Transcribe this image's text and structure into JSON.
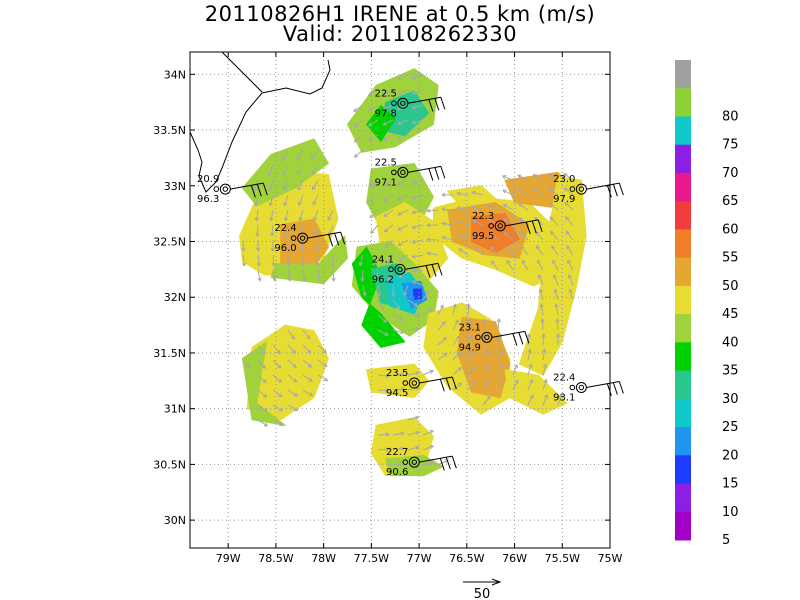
{
  "title_line1": "20110826H1 IRENE at 0.5 km (m/s)",
  "title_line2": "Valid: 201108262330",
  "map": {
    "lon_range": [
      -79.4,
      -75.0
    ],
    "lat_range": [
      29.75,
      34.2
    ],
    "lat_ticks": [
      {
        "value": 34.0,
        "label": "34N"
      },
      {
        "value": 33.5,
        "label": "33.5N"
      },
      {
        "value": 33.0,
        "label": "33N"
      },
      {
        "value": 32.5,
        "label": "32.5N"
      },
      {
        "value": 32.0,
        "label": "32N"
      },
      {
        "value": 31.5,
        "label": "31.5N"
      },
      {
        "value": 31.0,
        "label": "31N"
      },
      {
        "value": 30.5,
        "label": "30.5N"
      },
      {
        "value": 30.0,
        "label": "30N"
      }
    ],
    "lon_ticks": [
      {
        "value": -79.0,
        "label": "79W"
      },
      {
        "value": -78.5,
        "label": "78.5W"
      },
      {
        "value": -78.0,
        "label": "78W"
      },
      {
        "value": -77.5,
        "label": "77.5W"
      },
      {
        "value": -77.0,
        "label": "77W"
      },
      {
        "value": -76.5,
        "label": "76.5W"
      },
      {
        "value": -76.0,
        "label": "76W"
      },
      {
        "value": -75.5,
        "label": "75.5W"
      },
      {
        "value": -75.0,
        "label": "75W"
      }
    ],
    "grid": true,
    "storm_center": {
      "lon": -77.02,
      "lat": 32.04
    }
  },
  "colorbar": {
    "levels": [
      {
        "label": "",
        "color": "#a0a0a0"
      },
      {
        "label": "80",
        "color": "#8cd236"
      },
      {
        "label": "75",
        "color": "#10c8c8"
      },
      {
        "label": "70",
        "color": "#8a20e6"
      },
      {
        "label": "65",
        "color": "#e8188c"
      },
      {
        "label": "60",
        "color": "#f03c3c"
      },
      {
        "label": "55",
        "color": "#f07d28"
      },
      {
        "label": "50",
        "color": "#e6a632"
      },
      {
        "label": "45",
        "color": "#e6dc32"
      },
      {
        "label": "40",
        "color": "#a0d23c"
      },
      {
        "label": "35",
        "color": "#00d200"
      },
      {
        "label": "30",
        "color": "#28c88c"
      },
      {
        "label": "25",
        "color": "#10c8c8"
      },
      {
        "label": "20",
        "color": "#1e96f0"
      },
      {
        "label": "15",
        "color": "#1e3cff"
      },
      {
        "label": "10",
        "color": "#8a20e6"
      },
      {
        "label": "5",
        "color": "#a000c8"
      }
    ],
    "bottom_color": "#a000c8"
  },
  "vector_scale": {
    "label": "50"
  },
  "stations": [
    {
      "lon": -77.17,
      "lat": 33.74,
      "t": "22.5",
      "p": "97.8"
    },
    {
      "lon": -77.17,
      "lat": 33.12,
      "t": "22.5",
      "p": "97.1"
    },
    {
      "lon": -79.03,
      "lat": 32.97,
      "t": "20.9",
      "p": "96.3"
    },
    {
      "lon": -78.22,
      "lat": 32.53,
      "t": "22.4",
      "p": "96.0"
    },
    {
      "lon": -77.2,
      "lat": 32.25,
      "t": "24.1",
      "p": "96.2"
    },
    {
      "lon": -76.15,
      "lat": 32.64,
      "t": "22.3",
      "p": "99.5"
    },
    {
      "lon": -75.3,
      "lat": 32.97,
      "t": "23.0",
      "p": "97.9"
    },
    {
      "lon": -76.29,
      "lat": 31.64,
      "t": "23.1",
      "p": "94.9"
    },
    {
      "lon": -77.05,
      "lat": 31.23,
      "t": "23.5",
      "p": "94.5"
    },
    {
      "lon": -75.3,
      "lat": 31.19,
      "t": "22.4",
      "p": "93.1"
    },
    {
      "lon": -77.05,
      "lat": 30.52,
      "t": "22.7",
      "p": "90.6"
    }
  ],
  "wind_bands": [
    {
      "color": "#e6dc32",
      "points": [
        [
          -78.88,
          32.55
        ],
        [
          -78.7,
          32.9
        ],
        [
          -78.25,
          33.12
        ],
        [
          -77.95,
          33.1
        ],
        [
          -77.85,
          32.7
        ],
        [
          -78.0,
          32.35
        ],
        [
          -78.25,
          32.2
        ],
        [
          -78.62,
          32.2
        ],
        [
          -78.85,
          32.32
        ]
      ]
    },
    {
      "color": "#a0d23c",
      "points": [
        [
          -78.85,
          32.98
        ],
        [
          -78.55,
          33.28
        ],
        [
          -78.1,
          33.42
        ],
        [
          -77.95,
          33.2
        ],
        [
          -78.3,
          32.98
        ],
        [
          -78.7,
          32.82
        ]
      ]
    },
    {
      "color": "#e6a632",
      "points": [
        [
          -78.45,
          32.65
        ],
        [
          -78.1,
          32.7
        ],
        [
          -77.95,
          32.45
        ],
        [
          -78.15,
          32.22
        ],
        [
          -78.45,
          32.3
        ]
      ]
    },
    {
      "color": "#a0d23c",
      "points": [
        [
          -78.55,
          32.18
        ],
        [
          -78.0,
          32.12
        ],
        [
          -77.75,
          32.35
        ],
        [
          -77.78,
          32.55
        ],
        [
          -78.05,
          32.3
        ],
        [
          -78.5,
          32.3
        ]
      ]
    },
    {
      "color": "#a0d23c",
      "points": [
        [
          -77.75,
          33.55
        ],
        [
          -77.45,
          33.9
        ],
        [
          -77.05,
          34.05
        ],
        [
          -76.8,
          33.9
        ],
        [
          -76.85,
          33.55
        ],
        [
          -77.25,
          33.35
        ],
        [
          -77.6,
          33.3
        ]
      ]
    },
    {
      "color": "#28c88c",
      "points": [
        [
          -77.35,
          33.75
        ],
        [
          -77.05,
          33.85
        ],
        [
          -76.9,
          33.65
        ],
        [
          -77.15,
          33.45
        ],
        [
          -77.4,
          33.5
        ]
      ]
    },
    {
      "color": "#00d200",
      "points": [
        [
          -77.55,
          33.55
        ],
        [
          -77.4,
          33.72
        ],
        [
          -77.25,
          33.6
        ],
        [
          -77.4,
          33.4
        ]
      ]
    },
    {
      "color": "#a0d23c",
      "points": [
        [
          -77.5,
          33.15
        ],
        [
          -77.05,
          33.2
        ],
        [
          -76.85,
          32.9
        ],
        [
          -77.0,
          32.65
        ],
        [
          -77.4,
          32.62
        ],
        [
          -77.55,
          32.85
        ]
      ]
    },
    {
      "color": "#e6dc32",
      "points": [
        [
          -77.45,
          32.72
        ],
        [
          -77.15,
          32.85
        ],
        [
          -76.85,
          32.68
        ],
        [
          -76.7,
          32.35
        ],
        [
          -76.9,
          32.15
        ],
        [
          -77.2,
          32.25
        ],
        [
          -77.4,
          32.45
        ]
      ]
    },
    {
      "color": "#a0d23c",
      "points": [
        [
          -77.65,
          32.45
        ],
        [
          -77.3,
          32.5
        ],
        [
          -77.05,
          32.3
        ],
        [
          -76.8,
          32.05
        ],
        [
          -76.85,
          31.8
        ],
        [
          -77.1,
          31.65
        ],
        [
          -77.45,
          31.85
        ],
        [
          -77.7,
          32.1
        ]
      ]
    },
    {
      "color": "#00d200",
      "points": [
        [
          -77.7,
          32.3
        ],
        [
          -77.55,
          32.45
        ],
        [
          -77.4,
          32.2
        ],
        [
          -77.6,
          31.75
        ],
        [
          -77.4,
          31.55
        ],
        [
          -77.15,
          31.6
        ],
        [
          -77.4,
          31.85
        ],
        [
          -77.6,
          32.0
        ]
      ]
    },
    {
      "color": "#28c88c",
      "points": [
        [
          -77.5,
          32.25
        ],
        [
          -77.25,
          32.3
        ],
        [
          -77.05,
          32.15
        ],
        [
          -77.15,
          31.9
        ],
        [
          -77.4,
          31.95
        ]
      ]
    },
    {
      "color": "#10c8c8",
      "points": [
        [
          -77.35,
          32.18
        ],
        [
          -77.1,
          32.22
        ],
        [
          -76.95,
          32.05
        ],
        [
          -77.05,
          31.85
        ],
        [
          -77.3,
          31.92
        ]
      ]
    },
    {
      "color": "#1e96f0",
      "points": [
        [
          -77.18,
          32.12
        ],
        [
          -76.98,
          32.14
        ],
        [
          -76.92,
          31.98
        ],
        [
          -77.08,
          31.9
        ]
      ]
    },
    {
      "color": "#1e3cff",
      "points": [
        [
          -77.06,
          32.07
        ],
        [
          -76.98,
          32.08
        ],
        [
          -76.97,
          31.99
        ],
        [
          -77.05,
          31.98
        ]
      ]
    },
    {
      "color": "#e6dc32",
      "points": [
        [
          -76.7,
          32.95
        ],
        [
          -76.35,
          33.0
        ],
        [
          -76.15,
          32.85
        ],
        [
          -76.55,
          32.8
        ]
      ]
    },
    {
      "color": "#e6dc32",
      "points": [
        [
          -76.85,
          32.8
        ],
        [
          -76.4,
          32.9
        ],
        [
          -75.85,
          32.85
        ],
        [
          -75.55,
          32.6
        ],
        [
          -75.45,
          32.25
        ],
        [
          -75.8,
          32.1
        ],
        [
          -76.2,
          32.25
        ],
        [
          -76.55,
          32.35
        ],
        [
          -76.85,
          32.55
        ]
      ]
    },
    {
      "color": "#e6a632",
      "points": [
        [
          -76.7,
          32.78
        ],
        [
          -76.2,
          32.85
        ],
        [
          -75.85,
          32.65
        ],
        [
          -75.95,
          32.35
        ],
        [
          -76.3,
          32.38
        ],
        [
          -76.65,
          32.5
        ]
      ]
    },
    {
      "color": "#f07d28",
      "points": [
        [
          -76.45,
          32.72
        ],
        [
          -76.1,
          32.75
        ],
        [
          -75.95,
          32.52
        ],
        [
          -76.2,
          32.4
        ],
        [
          -76.45,
          32.5
        ]
      ]
    },
    {
      "color": "#e6a632",
      "points": [
        [
          -76.1,
          33.05
        ],
        [
          -75.55,
          33.12
        ],
        [
          -75.35,
          32.98
        ],
        [
          -75.55,
          32.8
        ],
        [
          -76.0,
          32.85
        ]
      ]
    },
    {
      "color": "#e6dc32",
      "points": [
        [
          -75.55,
          33.08
        ],
        [
          -75.3,
          33.05
        ],
        [
          -75.25,
          32.55
        ],
        [
          -75.35,
          32.1
        ],
        [
          -75.5,
          31.6
        ],
        [
          -75.7,
          31.3
        ],
        [
          -75.95,
          31.4
        ],
        [
          -75.75,
          31.9
        ],
        [
          -75.7,
          32.4
        ],
        [
          -75.6,
          32.8
        ]
      ]
    },
    {
      "color": "#e6dc32",
      "points": [
        [
          -76.9,
          31.85
        ],
        [
          -76.55,
          31.95
        ],
        [
          -76.25,
          31.8
        ],
        [
          -76.05,
          31.45
        ],
        [
          -76.05,
          31.1
        ],
        [
          -76.35,
          30.95
        ],
        [
          -76.7,
          31.2
        ],
        [
          -76.95,
          31.55
        ]
      ]
    },
    {
      "color": "#e6a632",
      "points": [
        [
          -76.55,
          31.82
        ],
        [
          -76.2,
          31.78
        ],
        [
          -76.05,
          31.4
        ],
        [
          -76.15,
          31.1
        ],
        [
          -76.45,
          31.15
        ],
        [
          -76.6,
          31.5
        ]
      ]
    },
    {
      "color": "#e6dc32",
      "points": [
        [
          -76.1,
          31.35
        ],
        [
          -75.75,
          31.3
        ],
        [
          -75.45,
          31.05
        ],
        [
          -75.7,
          30.95
        ],
        [
          -76.05,
          31.1
        ]
      ]
    },
    {
      "color": "#e6dc32",
      "points": [
        [
          -78.75,
          31.55
        ],
        [
          -78.4,
          31.75
        ],
        [
          -78.1,
          31.7
        ],
        [
          -77.95,
          31.45
        ],
        [
          -78.1,
          31.1
        ],
        [
          -78.45,
          30.9
        ],
        [
          -78.8,
          31.0
        ]
      ]
    },
    {
      "color": "#a0d23c",
      "points": [
        [
          -78.85,
          31.45
        ],
        [
          -78.6,
          31.6
        ],
        [
          -78.7,
          31.05
        ],
        [
          -78.4,
          30.85
        ],
        [
          -78.75,
          30.9
        ]
      ]
    },
    {
      "color": "#e6dc32",
      "points": [
        [
          -77.55,
          31.35
        ],
        [
          -77.05,
          31.4
        ],
        [
          -76.9,
          31.25
        ],
        [
          -77.05,
          31.1
        ],
        [
          -77.5,
          31.15
        ]
      ]
    },
    {
      "color": "#e6dc32",
      "points": [
        [
          -77.45,
          30.85
        ],
        [
          -77.05,
          30.92
        ],
        [
          -76.85,
          30.75
        ],
        [
          -76.95,
          30.45
        ],
        [
          -77.35,
          30.4
        ],
        [
          -77.5,
          30.6
        ]
      ]
    },
    {
      "color": "#a0d23c",
      "points": [
        [
          -77.35,
          30.55
        ],
        [
          -76.95,
          30.58
        ],
        [
          -76.75,
          30.48
        ],
        [
          -76.95,
          30.4
        ],
        [
          -77.3,
          30.4
        ]
      ]
    }
  ]
}
